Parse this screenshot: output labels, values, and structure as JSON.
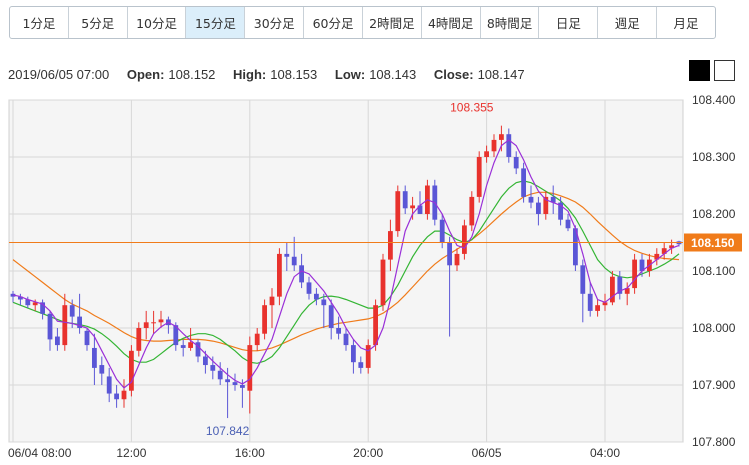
{
  "tabs": [
    {
      "label": "1分足"
    },
    {
      "label": "5分足"
    },
    {
      "label": "10分足"
    },
    {
      "label": "15分足",
      "active": true
    },
    {
      "label": "30分足"
    },
    {
      "label": "60分足"
    },
    {
      "label": "2時間足"
    },
    {
      "label": "4時間足"
    },
    {
      "label": "8時間足"
    },
    {
      "label": "日足"
    },
    {
      "label": "週足"
    },
    {
      "label": "月足"
    }
  ],
  "info": {
    "datetime": "2019/06/05 07:00",
    "open_label": "Open:",
    "open": "108.152",
    "high_label": "High:",
    "high": "108.153",
    "low_label": "Low:",
    "low": "108.143",
    "close_label": "Close:",
    "close": "108.147"
  },
  "theme_icons": [
    "dark-theme-square-icon",
    "light-theme-square-icon"
  ],
  "chart_data": {
    "type": "candlestick",
    "interval": "15分足",
    "ylim": [
      107.8,
      108.4
    ],
    "y_ticks": [
      "108.400",
      "108.300",
      "108.200",
      "108.100",
      "108.000",
      "107.900",
      "107.800"
    ],
    "x_ticks": [
      {
        "label": "06/04 08:00",
        "index": 0
      },
      {
        "label": "12:00",
        "index": 16
      },
      {
        "label": "16:00",
        "index": 32
      },
      {
        "label": "20:00",
        "index": 48
      },
      {
        "label": "06/05",
        "index": 64
      },
      {
        "label": "04:00",
        "index": 80
      }
    ],
    "grid": true,
    "current_price": {
      "label": "108.150",
      "value": 108.15
    },
    "annotations": [
      {
        "text": "108.355",
        "value": 108.355,
        "index": 62,
        "kind": "high"
      },
      {
        "text": "107.842",
        "value": 107.842,
        "index": 29,
        "kind": "low"
      }
    ],
    "colors": {
      "up": "#e8322d",
      "down": "#5a56d6",
      "ma_short": "#9a30d8",
      "ma_mid": "#34b534",
      "ma_long": "#f07b1a",
      "price_line": "#f07b1a",
      "price_tag": "#f07b1a"
    },
    "candles": [
      [
        108.06,
        108.065,
        108.045,
        108.055
      ],
      [
        108.055,
        108.06,
        108.04,
        108.05
      ],
      [
        108.05,
        108.055,
        108.035,
        108.04
      ],
      [
        108.04,
        108.05,
        108.03,
        108.045
      ],
      [
        108.045,
        108.05,
        108.015,
        108.025
      ],
      [
        108.025,
        108.03,
        107.96,
        107.98
      ],
      [
        107.985,
        108.0,
        107.96,
        107.97
      ],
      [
        107.97,
        108.06,
        107.96,
        108.04
      ],
      [
        108.04,
        108.05,
        108.0,
        108.02
      ],
      [
        108.02,
        108.06,
        107.99,
        108.0
      ],
      [
        107.995,
        108.0,
        107.96,
        107.97
      ],
      [
        107.965,
        107.99,
        107.9,
        107.93
      ],
      [
        107.935,
        107.95,
        107.9,
        107.92
      ],
      [
        107.915,
        107.93,
        107.87,
        107.885
      ],
      [
        107.885,
        107.9,
        107.86,
        107.875
      ],
      [
        107.875,
        107.91,
        107.86,
        107.89
      ],
      [
        107.89,
        107.97,
        107.88,
        107.96
      ],
      [
        107.96,
        108.01,
        107.95,
        108.0
      ],
      [
        108.0,
        108.03,
        107.98,
        108.01
      ],
      [
        108.01,
        108.03,
        107.99,
        108.01
      ],
      [
        108.01,
        108.03,
        108.0,
        108.015
      ],
      [
        108.015,
        108.02,
        107.99,
        108.005
      ],
      [
        108.005,
        108.01,
        107.96,
        107.97
      ],
      [
        107.97,
        107.98,
        107.95,
        107.965
      ],
      [
        107.965,
        108.0,
        107.96,
        107.975
      ],
      [
        107.975,
        107.98,
        107.94,
        107.95
      ],
      [
        107.95,
        107.96,
        107.92,
        107.935
      ],
      [
        107.935,
        107.95,
        107.91,
        107.925
      ],
      [
        107.925,
        107.94,
        107.9,
        107.91
      ],
      [
        107.91,
        107.93,
        107.842,
        107.905
      ],
      [
        107.905,
        107.92,
        107.89,
        107.9
      ],
      [
        107.9,
        107.91,
        107.86,
        107.895
      ],
      [
        107.89,
        107.985,
        107.85,
        107.97
      ],
      [
        107.97,
        108.0,
        107.96,
        107.99
      ],
      [
        107.99,
        108.05,
        107.98,
        108.04
      ],
      [
        108.04,
        108.07,
        108.0,
        108.055
      ],
      [
        108.055,
        108.14,
        108.04,
        108.13
      ],
      [
        108.13,
        108.15,
        108.1,
        108.125
      ],
      [
        108.125,
        108.16,
        108.1,
        108.11
      ],
      [
        108.11,
        108.13,
        108.07,
        108.08
      ],
      [
        108.08,
        108.09,
        108.05,
        108.06
      ],
      [
        108.06,
        108.07,
        108.04,
        108.05
      ],
      [
        108.05,
        108.06,
        108.0,
        108.04
      ],
      [
        108.04,
        108.05,
        107.98,
        108.0
      ],
      [
        108.0,
        108.02,
        107.98,
        107.99
      ],
      [
        107.99,
        108.0,
        107.96,
        107.97
      ],
      [
        107.97,
        107.98,
        107.92,
        107.94
      ],
      [
        107.94,
        107.95,
        107.92,
        107.93
      ],
      [
        107.93,
        107.98,
        107.92,
        107.97
      ],
      [
        107.97,
        108.05,
        107.96,
        108.04
      ],
      [
        108.04,
        108.13,
        108.03,
        108.12
      ],
      [
        108.12,
        108.19,
        108.1,
        108.17
      ],
      [
        108.17,
        108.25,
        108.16,
        108.24
      ],
      [
        108.24,
        108.25,
        108.2,
        108.21
      ],
      [
        108.21,
        108.23,
        108.19,
        108.215
      ],
      [
        108.215,
        108.24,
        108.2,
        108.2
      ],
      [
        108.2,
        108.26,
        108.19,
        108.25
      ],
      [
        108.25,
        108.26,
        108.18,
        108.19
      ],
      [
        108.19,
        108.2,
        108.14,
        108.15
      ],
      [
        108.15,
        108.16,
        107.985,
        108.11
      ],
      [
        108.11,
        108.14,
        108.1,
        108.13
      ],
      [
        108.13,
        108.19,
        108.12,
        108.18
      ],
      [
        108.18,
        108.24,
        108.17,
        108.23
      ],
      [
        108.23,
        108.31,
        108.22,
        108.3
      ],
      [
        108.3,
        108.32,
        108.29,
        108.31
      ],
      [
        108.31,
        108.34,
        108.3,
        108.33
      ],
      [
        108.33,
        108.355,
        108.31,
        108.34
      ],
      [
        108.34,
        108.35,
        108.29,
        108.3
      ],
      [
        108.3,
        108.31,
        108.27,
        108.28
      ],
      [
        108.28,
        108.29,
        108.22,
        108.23
      ],
      [
        108.23,
        108.25,
        108.21,
        108.22
      ],
      [
        108.22,
        108.23,
        108.18,
        108.2
      ],
      [
        108.2,
        108.24,
        108.19,
        108.23
      ],
      [
        108.23,
        108.25,
        108.2,
        108.22
      ],
      [
        108.22,
        108.23,
        108.18,
        108.19
      ],
      [
        108.19,
        108.2,
        108.17,
        108.175
      ],
      [
        108.175,
        108.18,
        108.1,
        108.11
      ],
      [
        108.11,
        108.12,
        108.01,
        108.06
      ],
      [
        108.06,
        108.08,
        108.02,
        108.03
      ],
      [
        108.03,
        108.05,
        108.02,
        108.04
      ],
      [
        108.04,
        108.06,
        108.03,
        108.045
      ],
      [
        108.045,
        108.1,
        108.04,
        108.09
      ],
      [
        108.09,
        108.1,
        108.05,
        108.06
      ],
      [
        108.06,
        108.08,
        108.04,
        108.07
      ],
      [
        108.07,
        108.13,
        108.06,
        108.12
      ],
      [
        108.12,
        108.13,
        108.09,
        108.1
      ],
      [
        108.1,
        108.13,
        108.09,
        108.12
      ],
      [
        108.12,
        108.14,
        108.11,
        108.13
      ],
      [
        108.13,
        108.15,
        108.12,
        108.14
      ],
      [
        108.14,
        108.155,
        108.13,
        108.145
      ],
      [
        108.152,
        108.153,
        108.143,
        108.147
      ]
    ],
    "ma_short": [
      108.058,
      108.055,
      108.05,
      108.046,
      108.042,
      108.03,
      108.012,
      108.01,
      108.008,
      108.004,
      108.0,
      107.985,
      107.96,
      107.935,
      107.91,
      107.895,
      107.905,
      107.935,
      107.965,
      107.99,
      108.002,
      108.01,
      108.003,
      107.99,
      107.978,
      107.968,
      107.955,
      107.942,
      107.93,
      107.918,
      107.908,
      107.902,
      107.91,
      107.93,
      107.955,
      107.98,
      108.02,
      108.06,
      108.09,
      108.1,
      108.095,
      108.08,
      108.065,
      108.045,
      108.025,
      108.0,
      107.98,
      107.965,
      107.96,
      107.97,
      108.0,
      108.05,
      108.11,
      108.17,
      108.2,
      108.215,
      108.225,
      108.22,
      108.2,
      108.17,
      108.145,
      108.14,
      108.16,
      108.2,
      108.25,
      108.29,
      108.32,
      108.33,
      108.32,
      108.295,
      108.265,
      108.24,
      108.225,
      108.22,
      108.215,
      108.205,
      108.175,
      108.13,
      108.08,
      108.05,
      108.045,
      108.055,
      108.065,
      108.07,
      108.085,
      108.1,
      108.11,
      108.12,
      108.13,
      108.14,
      108.145
    ],
    "ma_mid": [
      108.045,
      108.04,
      108.035,
      108.03,
      108.025,
      108.02,
      108.015,
      108.01,
      108.008,
      108.006,
      108.003,
      107.998,
      107.99,
      107.98,
      107.968,
      107.955,
      107.945,
      107.94,
      107.94,
      107.945,
      107.955,
      107.965,
      107.975,
      107.982,
      107.987,
      107.99,
      107.99,
      107.987,
      107.98,
      107.97,
      107.96,
      107.948,
      107.94,
      107.938,
      107.942,
      107.95,
      107.965,
      107.985,
      108.005,
      108.025,
      108.04,
      108.05,
      108.055,
      108.056,
      108.054,
      108.05,
      108.045,
      108.04,
      108.035,
      108.035,
      108.04,
      108.055,
      108.075,
      108.1,
      108.125,
      108.145,
      108.16,
      108.17,
      108.17,
      108.163,
      108.155,
      108.15,
      108.155,
      108.17,
      108.19,
      108.21,
      108.23,
      108.245,
      108.255,
      108.258,
      108.255,
      108.248,
      108.24,
      108.232,
      108.223,
      108.21,
      108.193,
      108.17,
      108.145,
      108.12,
      108.105,
      108.095,
      108.09,
      108.088,
      108.09,
      108.095,
      108.1,
      108.105,
      108.112,
      108.12,
      108.13
    ],
    "ma_long": [
      108.12,
      108.11,
      108.1,
      108.09,
      108.08,
      108.07,
      108.06,
      108.05,
      108.042,
      108.036,
      108.03,
      108.022,
      108.015,
      108.008,
      108.0,
      107.992,
      107.985,
      107.98,
      107.978,
      107.977,
      107.977,
      107.978,
      107.979,
      107.98,
      107.98,
      107.98,
      107.979,
      107.977,
      107.974,
      107.97,
      107.966,
      107.962,
      107.96,
      107.96,
      107.962,
      107.965,
      107.97,
      107.976,
      107.982,
      107.988,
      107.993,
      107.998,
      108.002,
      108.005,
      108.008,
      108.01,
      108.012,
      108.014,
      108.016,
      108.02,
      108.026,
      108.035,
      108.045,
      108.058,
      108.072,
      108.086,
      108.1,
      108.112,
      108.122,
      108.13,
      108.138,
      108.146,
      108.155,
      108.165,
      108.176,
      108.188,
      108.2,
      108.211,
      108.221,
      108.23,
      108.235,
      108.238,
      108.238,
      108.236,
      108.232,
      108.227,
      108.221,
      108.212,
      108.2,
      108.187,
      108.175,
      108.163,
      108.152,
      108.143,
      108.136,
      108.131,
      108.127,
      108.124,
      108.122,
      108.121,
      108.12
    ]
  }
}
